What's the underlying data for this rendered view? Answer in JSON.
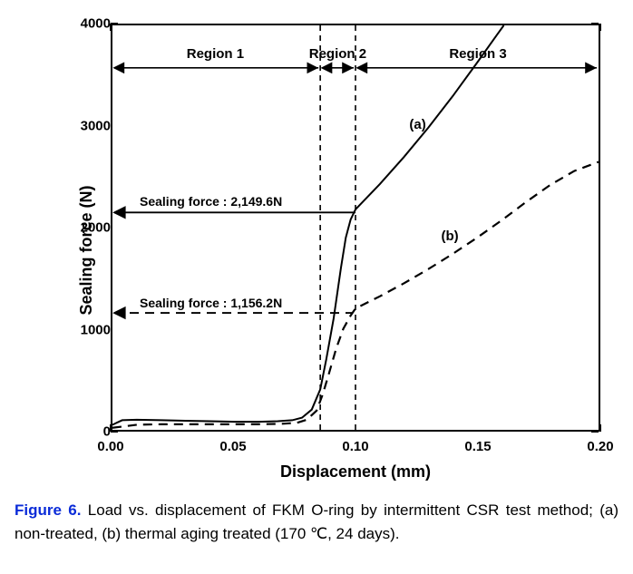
{
  "chart": {
    "type": "line",
    "xlabel": "Displacement (mm)",
    "ylabel": "Sealing force (N)",
    "xlim": [
      0.0,
      0.2
    ],
    "ylim": [
      0,
      4000
    ],
    "xticks": [
      "0.00",
      "0.05",
      "0.10",
      "0.15",
      "0.20"
    ],
    "yticks": [
      "0",
      "1000",
      "2000",
      "3000",
      "4000"
    ],
    "tick_fontsize": 15,
    "label_fontsize": 18,
    "border_color": "#000000",
    "background_color": "#ffffff",
    "line_color": "#000000",
    "line_width_a": 2.0,
    "line_width_b": 2.2,
    "dash_b": "10,7",
    "series_a": {
      "label": "(a)",
      "style": "solid",
      "points": [
        [
          0.0,
          50
        ],
        [
          0.004,
          95
        ],
        [
          0.01,
          100
        ],
        [
          0.02,
          95
        ],
        [
          0.03,
          90
        ],
        [
          0.04,
          85
        ],
        [
          0.05,
          80
        ],
        [
          0.06,
          80
        ],
        [
          0.068,
          85
        ],
        [
          0.074,
          95
        ],
        [
          0.078,
          120
        ],
        [
          0.082,
          200
        ],
        [
          0.0855,
          400
        ],
        [
          0.088,
          700
        ],
        [
          0.091,
          1100
        ],
        [
          0.094,
          1600
        ],
        [
          0.096,
          1900
        ],
        [
          0.098,
          2080
        ],
        [
          0.1,
          2180
        ],
        [
          0.11,
          2430
        ],
        [
          0.12,
          2700
        ],
        [
          0.13,
          2990
        ],
        [
          0.14,
          3300
        ],
        [
          0.15,
          3630
        ],
        [
          0.158,
          3900
        ],
        [
          0.161,
          4000
        ]
      ]
    },
    "series_b": {
      "label": "(b)",
      "style": "dashed",
      "points": [
        [
          0.0,
          20
        ],
        [
          0.01,
          50
        ],
        [
          0.02,
          55
        ],
        [
          0.03,
          55
        ],
        [
          0.04,
          55
        ],
        [
          0.05,
          55
        ],
        [
          0.06,
          55
        ],
        [
          0.07,
          60
        ],
        [
          0.076,
          70
        ],
        [
          0.08,
          100
        ],
        [
          0.084,
          190
        ],
        [
          0.0865,
          350
        ],
        [
          0.089,
          550
        ],
        [
          0.092,
          800
        ],
        [
          0.095,
          1000
        ],
        [
          0.098,
          1130
        ],
        [
          0.1,
          1200
        ],
        [
          0.11,
          1320
        ],
        [
          0.12,
          1450
        ],
        [
          0.13,
          1590
        ],
        [
          0.14,
          1740
        ],
        [
          0.15,
          1900
        ],
        [
          0.16,
          2070
        ],
        [
          0.17,
          2250
        ],
        [
          0.18,
          2420
        ],
        [
          0.19,
          2560
        ],
        [
          0.2,
          2650
        ]
      ]
    },
    "regions": {
      "line_y": 3580,
      "boundaries": [
        0.0855,
        0.1
      ],
      "labels": [
        "Region 1",
        "Region 2",
        "Region 3"
      ]
    },
    "vlines": [
      0.0855,
      0.1
    ],
    "vline_dash": "6,5",
    "annotations": [
      {
        "text": "Sealing force : 2,149.6N",
        "y": 2149.6,
        "x_end": 0.1,
        "style": "solid"
      },
      {
        "text": "Sealing force : 1,156.2N",
        "y": 1156.2,
        "x_end": 0.099,
        "style": "dashed"
      }
    ],
    "series_label_positions": {
      "a": [
        0.122,
        3000
      ],
      "b": [
        0.135,
        1900
      ]
    }
  },
  "caption": {
    "fignum": "Figure 6.",
    "text": " Load vs. displacement of FKM O-ring by intermittent CSR test method; (a) non-treated, (b) thermal aging treated (170 ℃, 24 days)."
  }
}
